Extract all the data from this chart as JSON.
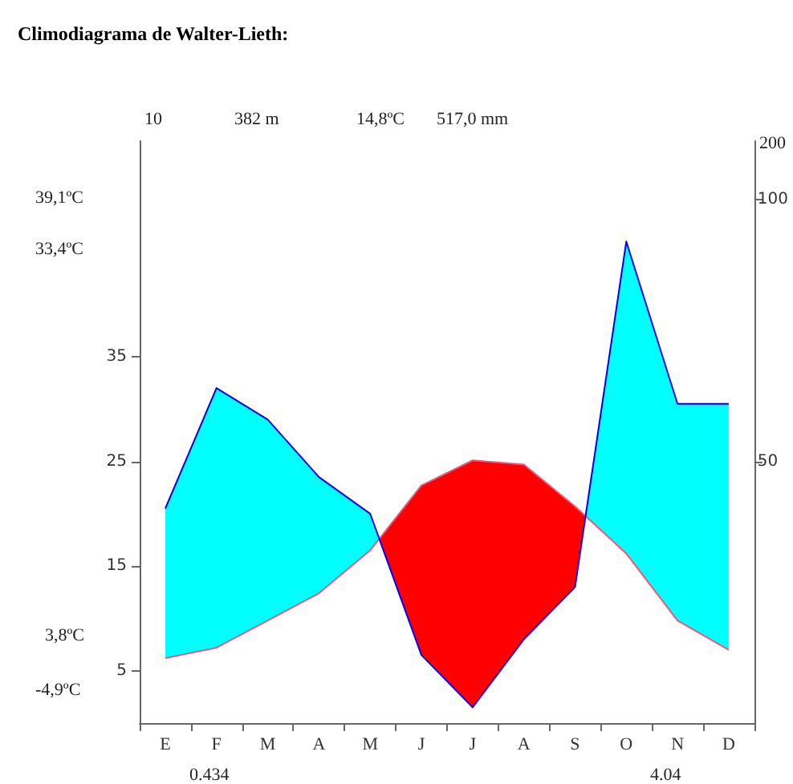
{
  "chart_data": {
    "type": "line",
    "title": "Climodiagrama de Walter-Lieth:",
    "categories": [
      "E",
      "F",
      "M",
      "A",
      "M",
      "J",
      "J",
      "A",
      "S",
      "O",
      "N",
      "D"
    ],
    "series": [
      {
        "color": "#ff5070",
        "values": [
          6.2,
          7.2,
          9.8,
          12.4,
          16.5,
          22.7,
          25.1,
          24.7,
          20.7,
          16.2,
          9.8,
          7.0
        ]
      },
      {
        "color": "#0000ff",
        "axis": "y2",
        "values": [
          41,
          64,
          58,
          47,
          40,
          13,
          3,
          16,
          26,
          92,
          61,
          61
        ]
      }
    ],
    "ylim": [
      0,
      55.6
    ],
    "yticks": [
      5,
      15,
      25,
      35
    ],
    "y2lim": [
      0,
      111.2
    ],
    "y2ticks": [
      50,
      100
    ],
    "annotations": [
      "10",
      "382 m",
      "14,8ºC",
      "517,0 mm",
      "39,1ºC",
      "33,4ºC",
      "3,8ºC",
      "-4,9ºC",
      "0.434",
      "4.04",
      "200"
    ],
    "grid": false,
    "marker": "none",
    "line_style": "solid"
  }
}
